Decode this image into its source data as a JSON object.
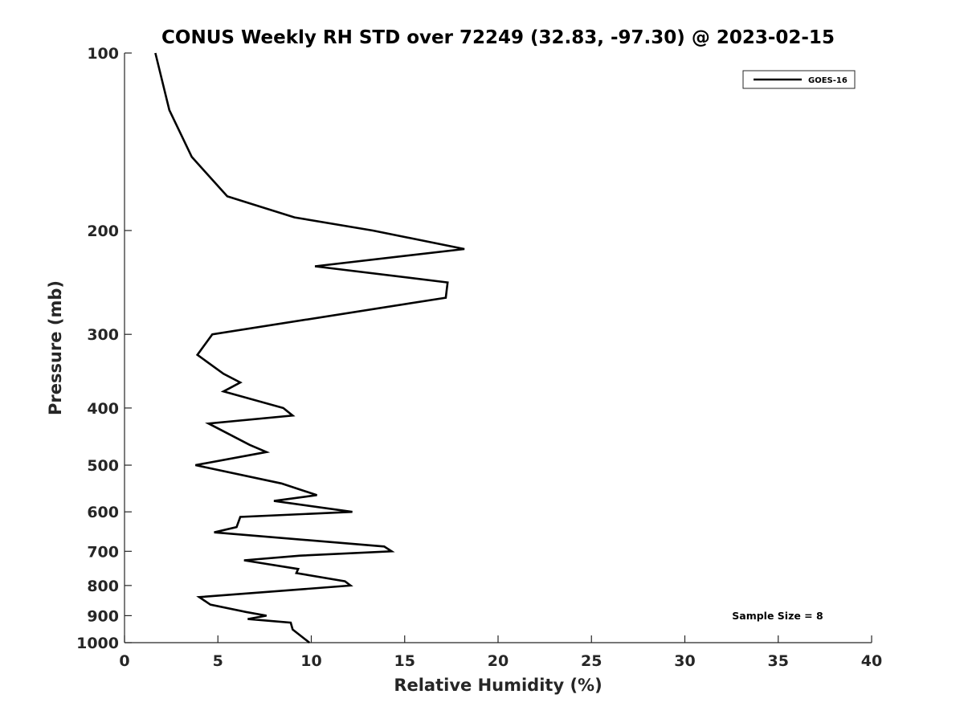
{
  "chart_data": {
    "type": "line",
    "title": "CONUS Weekly RH STD over 72249 (32.83, -97.30) @ 2023-02-15",
    "xlabel": "Relative Humidity (%)",
    "ylabel": "Pressure (mb)",
    "xlim": [
      0,
      40
    ],
    "ylim": [
      100,
      1000
    ],
    "y_scale": "log",
    "y_reversed": true,
    "x_ticks": [
      "0",
      "5",
      "10",
      "15",
      "20",
      "25",
      "30",
      "35",
      "40"
    ],
    "y_ticks": [
      "100",
      "200",
      "300",
      "400",
      "500",
      "600",
      "700",
      "800",
      "900",
      "1000"
    ],
    "grid": false,
    "legend_position": "top-right",
    "annotation": "Sample Size = 8",
    "series": [
      {
        "name": "GOES-16",
        "color": "#000000",
        "points": [
          [
            1.65,
            100
          ],
          [
            2.4,
            125
          ],
          [
            3.6,
            150
          ],
          [
            5.5,
            175
          ],
          [
            9.1,
            190
          ],
          [
            13.3,
            200
          ],
          [
            18.2,
            215
          ],
          [
            10.2,
            230
          ],
          [
            17.3,
            245
          ],
          [
            17.2,
            260
          ],
          [
            4.7,
            300
          ],
          [
            3.9,
            325
          ],
          [
            5.3,
            350
          ],
          [
            6.2,
            362
          ],
          [
            5.3,
            375
          ],
          [
            8.5,
            400
          ],
          [
            9.0,
            412
          ],
          [
            4.5,
            425
          ],
          [
            6.7,
            462
          ],
          [
            7.6,
            475
          ],
          [
            3.8,
            500
          ],
          [
            8.4,
            537
          ],
          [
            10.3,
            562
          ],
          [
            8.0,
            575
          ],
          [
            12.2,
            600
          ],
          [
            6.2,
            612
          ],
          [
            6.0,
            637
          ],
          [
            4.8,
            650
          ],
          [
            13.9,
            687
          ],
          [
            14.3,
            700
          ],
          [
            9.4,
            712
          ],
          [
            6.4,
            725
          ],
          [
            9.3,
            750
          ],
          [
            9.2,
            762
          ],
          [
            11.8,
            787
          ],
          [
            12.1,
            800
          ],
          [
            4.0,
            837
          ],
          [
            4.6,
            862
          ],
          [
            6.5,
            887
          ],
          [
            7.6,
            900
          ],
          [
            6.6,
            912
          ],
          [
            8.9,
            925
          ],
          [
            9.0,
            950
          ],
          [
            9.9,
            1000
          ]
        ]
      }
    ]
  }
}
